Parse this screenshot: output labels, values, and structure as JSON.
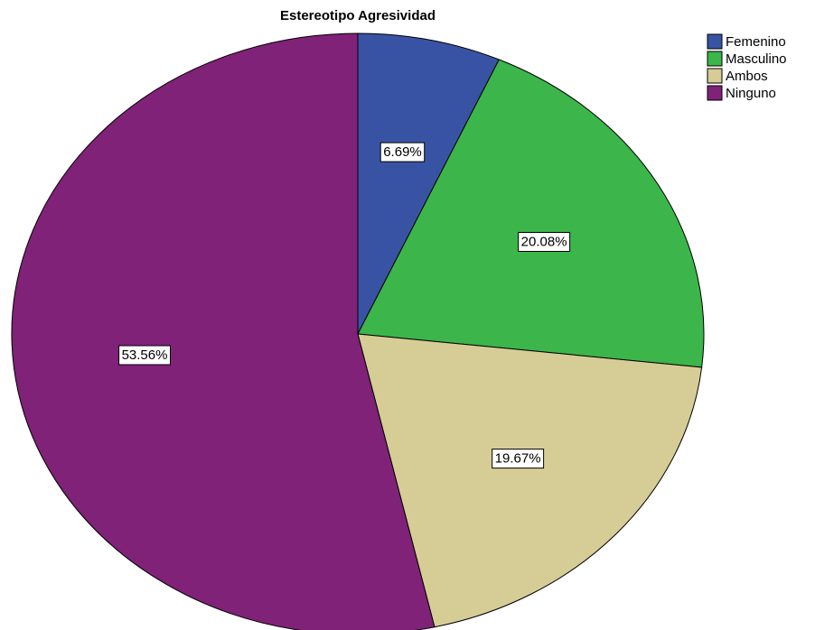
{
  "chart_data": {
    "type": "pie",
    "title": "Estereotipo Agresividad",
    "legend_position": "top-right",
    "start_angle_deg": 0,
    "direction": "clockwise",
    "slices": [
      {
        "name": "Femenino",
        "value": 6.69,
        "label": "6.69%",
        "color": "#3953a4"
      },
      {
        "name": "Masculino",
        "value": 20.08,
        "label": "20.08%",
        "color": "#3cb54a"
      },
      {
        "name": "Ambos",
        "value": 19.67,
        "label": "19.67%",
        "color": "#d6cd96"
      },
      {
        "name": "Ninguno",
        "value": 53.56,
        "label": "53.56%",
        "color": "#7f2278"
      }
    ]
  }
}
